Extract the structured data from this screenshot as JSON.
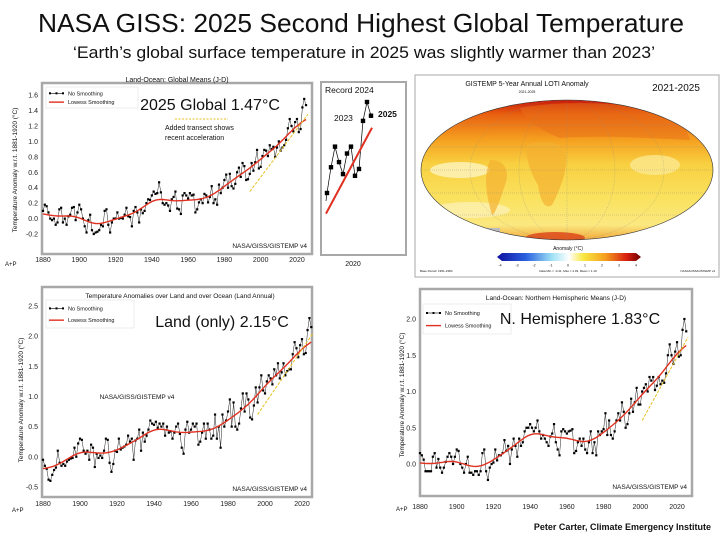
{
  "slide": {
    "title": "NASA GISS: 2025 Second Highest Global Temperature",
    "subtitle": "‘Earth’s global surface temperature in 2025 was slightly warmer than 2023’",
    "credit": "Peter Carter, Climate Emergency Institute",
    "watermark": "A+P"
  },
  "colors": {
    "points": "#000000",
    "lowess": "#e03020",
    "transect": "#e8c020",
    "frame": "#a8a8a8"
  },
  "legend": {
    "raw": "No Smoothing",
    "smooth": "Lowess Smoothing"
  },
  "chart_data": [
    {
      "id": "global",
      "type": "line",
      "title": "Land-Ocean: Global Means (J-D)",
      "ylabel": "Temperature Anomaly w.r.t. 1881-1920 (°C)",
      "xlabel": "",
      "callout": "2025 Global  1.47°C",
      "annotation": "Added transect shows recent acceleration",
      "annotation_lines": [
        "Added transect shows",
        "recent acceleration"
      ],
      "source": "NASA/GISS/GISTEMP v4",
      "xlim": [
        1880,
        2025
      ],
      "ylim": [
        -0.35,
        1.7
      ],
      "x_ticks": [
        "1880",
        "1900",
        "1920",
        "1940",
        "1960",
        "1980",
        "2000",
        "2020"
      ],
      "y_ticks": [
        "-0.2",
        "0.0",
        "0.2",
        "0.4",
        "0.6",
        "0.8",
        "1.0",
        "1.2",
        "1.4",
        "1.6"
      ],
      "start_year": 1880,
      "series": [
        {
          "name": "No Smoothing",
          "values": [
            0.1,
            0.18,
            0.16,
            0.08,
            0.0,
            -0.02,
            0.0,
            -0.08,
            -0.05,
            0.12,
            0.14,
            -0.05,
            0.0,
            -0.08,
            0.03,
            0.05,
            0.14,
            0.15,
            -0.02,
            0.08,
            0.18,
            0.12,
            0.0,
            -0.1,
            -0.18,
            -0.02,
            0.05,
            -0.15,
            -0.2,
            -0.18,
            -0.17,
            -0.15,
            -0.08,
            -0.1,
            0.1,
            0.12,
            -0.08,
            -0.18,
            -0.05,
            0.0,
            0.0,
            0.08,
            0.0,
            0.01,
            0.0,
            0.05,
            0.14,
            0.03,
            0.02,
            -0.1,
            0.1,
            0.15,
            0.08,
            -0.05,
            0.12,
            0.07,
            0.1,
            0.2,
            0.25,
            0.24,
            0.3,
            0.35,
            0.32,
            0.33,
            0.47,
            0.34,
            0.2,
            0.18,
            0.2,
            0.17,
            0.1,
            0.25,
            0.28,
            0.35,
            0.13,
            0.12,
            0.06,
            0.3,
            0.33,
            0.3,
            0.26,
            0.33,
            0.3,
            0.31,
            0.08,
            0.12,
            0.21,
            0.25,
            0.2,
            0.32,
            0.3,
            0.21,
            0.28,
            0.42,
            0.2,
            0.25,
            0.18,
            0.44,
            0.33,
            0.4,
            0.5,
            0.57,
            0.4,
            0.58,
            0.42,
            0.39,
            0.45,
            0.6,
            0.66,
            0.54,
            0.72,
            0.68,
            0.5,
            0.51,
            0.58,
            0.72,
            0.62,
            0.73,
            0.89,
            0.65,
            0.67,
            0.81,
            0.89,
            0.88,
            0.81,
            0.95,
            0.9,
            0.93,
            0.8,
            0.92,
            1.0,
            0.88,
            0.92,
            0.95,
            1.02,
            1.17,
            1.29,
            1.2,
            1.13,
            1.25,
            1.29,
            1.12,
            1.16,
            1.44,
            1.55,
            1.47
          ]
        }
      ],
      "transect": {
        "from": [
          1994,
          0.35
        ],
        "to": [
          2026,
          1.35
        ]
      }
    },
    {
      "id": "inset",
      "type": "line",
      "title": "Record 2024",
      "labels": {
        "y2023": "2023",
        "y2025": "2025",
        "x": "2020"
      },
      "start_year": 2014,
      "values": [
        1.02,
        1.17,
        1.29,
        1.2,
        1.13,
        1.25,
        1.29,
        1.12,
        1.16,
        1.44,
        1.55,
        1.47
      ],
      "trend": {
        "from": [
          2014,
          0.9
        ],
        "to": [
          2025,
          1.4
        ]
      }
    },
    {
      "id": "land",
      "type": "line",
      "title": "Temperature Anomalies over Land and over Ocean (Land Annual)",
      "ylabel": "Temperature Anomaly w.r.t. 1881-1920 (°C)",
      "callout": "Land (only)  2.15°C",
      "source": "NASA/GISS/GISTEMP v4",
      "source_mid": "NASA/GISS/GISTEMP v4",
      "xlim": [
        1880,
        2025
      ],
      "ylim": [
        -0.65,
        2.65
      ],
      "x_ticks": [
        "1880",
        "1900",
        "1920",
        "1940",
        "1960",
        "1980",
        "2000",
        "2020"
      ],
      "y_ticks": [
        "-0.5",
        "0.0",
        "0.5",
        "1.0",
        "1.5",
        "2.0",
        "2.5"
      ],
      "start_year": 1880,
      "series": [
        {
          "name": "No Smoothing",
          "values": [
            -0.05,
            -0.15,
            -0.2,
            -0.38,
            -0.4,
            -0.3,
            -0.22,
            -0.18,
            0.1,
            -0.1,
            -0.15,
            -0.12,
            -0.15,
            -0.08,
            -0.05,
            -0.03,
            -0.02,
            0.15,
            0.0,
            0.22,
            0.3,
            0.28,
            0.1,
            0.05,
            0.1,
            -0.05,
            0.2,
            0.15,
            -0.17,
            0.05,
            -0.02,
            0.02,
            -0.02,
            0.1,
            0.3,
            0.28,
            -0.1,
            -0.25,
            -0.12,
            0.1,
            0.08,
            0.3,
            0.12,
            0.15,
            0.17,
            0.2,
            0.35,
            0.25,
            0.3,
            -0.05,
            0.27,
            0.3,
            0.45,
            0.1,
            0.4,
            0.25,
            0.35,
            0.45,
            0.6,
            0.55,
            0.53,
            0.58,
            0.48,
            0.55,
            0.5,
            0.55,
            0.35,
            0.5,
            0.4,
            0.42,
            0.3,
            0.4,
            0.5,
            0.55,
            0.38,
            0.15,
            0.05,
            0.45,
            0.58,
            0.4,
            0.45,
            0.55,
            0.5,
            0.55,
            0.2,
            0.25,
            0.4,
            0.55,
            0.3,
            0.55,
            0.45,
            0.3,
            0.35,
            0.7,
            0.3,
            0.5,
            0.15,
            0.7,
            0.5,
            0.6,
            0.75,
            0.95,
            0.5,
            0.9,
            0.5,
            0.45,
            0.55,
            0.8,
            1.05,
            0.75,
            1.05,
            0.95,
            0.65,
            0.62,
            0.85,
            1.15,
            0.9,
            1.15,
            1.35,
            1.1,
            1.05,
            1.25,
            1.35,
            1.3,
            1.2,
            1.45,
            1.35,
            1.55,
            1.3,
            1.4,
            1.55,
            1.35,
            1.42,
            1.45,
            1.45,
            1.7,
            1.9,
            1.8,
            1.65,
            1.85,
            1.95,
            1.7,
            1.72,
            2.1,
            2.3,
            2.15
          ]
        }
      ],
      "transect": {
        "from": [
          1996,
          0.7
        ],
        "to": [
          2026,
          2.05
        ]
      }
    },
    {
      "id": "nh",
      "type": "line",
      "title": "Land-Ocean: Northern Hemispheric Means (J-D)",
      "ylabel": "Temperature Anomaly w.r.t. 1881-1920 (°C)",
      "callout": "N. Hemisphere 1.83°C",
      "source": "NASA/GISS/GISTEMP v4",
      "xlim": [
        1880,
        2025
      ],
      "ylim": [
        -0.35,
        2.3
      ],
      "x_ticks": [
        "1880",
        "1900",
        "1920",
        "1940",
        "1960",
        "1980",
        "2000",
        "2020"
      ],
      "y_ticks": [
        "0.0",
        "0.5",
        "1.0",
        "1.5",
        "2.0"
      ],
      "start_year": 1880,
      "series": [
        {
          "name": "No Smoothing",
          "values": [
            0.15,
            0.12,
            0.06,
            -0.1,
            -0.1,
            -0.1,
            -0.1,
            0.1,
            0.15,
            -0.05,
            0.07,
            -0.05,
            -0.12,
            -0.05,
            0.03,
            0.1,
            0.15,
            0.1,
            0.0,
            0.1,
            0.2,
            0.18,
            0.0,
            -0.05,
            -0.12,
            0.0,
            0.1,
            -0.12,
            -0.12,
            -0.15,
            -0.1,
            -0.1,
            -0.15,
            -0.1,
            0.15,
            0.2,
            -0.1,
            -0.22,
            -0.05,
            0.0,
            0.02,
            0.2,
            0.05,
            0.12,
            0.12,
            0.15,
            0.33,
            0.18,
            0.25,
            0.0,
            0.2,
            0.35,
            0.25,
            0.1,
            0.35,
            0.25,
            0.3,
            0.45,
            0.5,
            0.5,
            0.55,
            0.5,
            0.45,
            0.5,
            0.6,
            0.45,
            0.35,
            0.4,
            0.35,
            0.3,
            0.25,
            0.38,
            0.42,
            0.55,
            0.3,
            0.2,
            0.12,
            0.45,
            0.48,
            0.45,
            0.42,
            0.45,
            0.46,
            0.48,
            0.15,
            0.18,
            0.3,
            0.35,
            0.25,
            0.35,
            0.2,
            0.15,
            0.3,
            0.45,
            0.15,
            0.3,
            0.12,
            0.45,
            0.4,
            0.45,
            0.48,
            0.7,
            0.4,
            0.6,
            0.4,
            0.35,
            0.45,
            0.6,
            0.7,
            0.6,
            0.85,
            0.72,
            0.5,
            0.55,
            0.7,
            0.9,
            0.72,
            0.85,
            1.05,
            0.82,
            0.82,
            1.0,
            1.05,
            1.1,
            1.0,
            1.2,
            1.15,
            1.2,
            1.02,
            1.08,
            1.2,
            1.1,
            1.15,
            1.12,
            1.25,
            1.5,
            1.65,
            1.5,
            1.38,
            1.55,
            1.68,
            1.48,
            1.5,
            1.85,
            2.0,
            1.83
          ]
        }
      ],
      "transect": {
        "from": [
          2001,
          0.6
        ],
        "to": [
          2026,
          1.75
        ]
      }
    }
  ],
  "map": {
    "title": "GISTEMP 5-Year Annual LOTI Anomaly",
    "subtitle": "2021-2025",
    "period_label": "2021-2025",
    "colorbar_label": "Anomaly (°C)",
    "colorbar_ticks": [
      "-4",
      "-3",
      "-2",
      "-1",
      "0",
      "1",
      "2",
      "3",
      "4"
    ],
    "footer_left": "Base Period: 1951-1980",
    "footer_mid": "Data Min = -0.41, Max = 4.03, Mean = 1.19",
    "footer_right": "NASA/GISS/GISTEMP v4"
  }
}
